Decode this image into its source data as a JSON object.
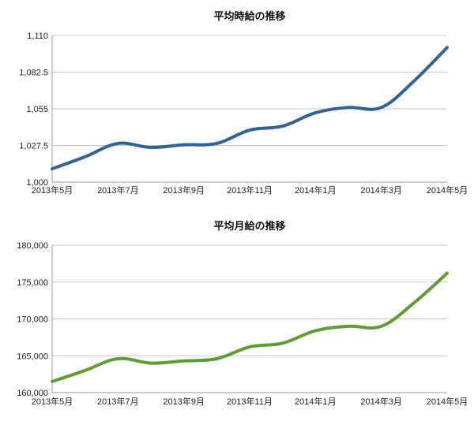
{
  "chart_data": [
    {
      "type": "line",
      "title": "平均時給の推移",
      "xlabel": "",
      "ylabel": "",
      "ylim": [
        1000,
        1110
      ],
      "yticks": [
        "1,000",
        "1,027.5",
        "1,055",
        "1,082.5",
        "1,110"
      ],
      "ytick_values": [
        1000,
        1027.5,
        1055,
        1082.5,
        1110
      ],
      "xtick_labels": [
        "2013年5月",
        "2013年7月",
        "2013年9月",
        "2013年11月",
        "2014年1月",
        "2014年3月",
        "2014年5月"
      ],
      "x": [
        "2013年5月",
        "2013年6月",
        "2013年7月",
        "2013年8月",
        "2013年9月",
        "2013年10月",
        "2013年11月",
        "2013年12月",
        "2014年1月",
        "2014年2月",
        "2014年3月",
        "2014年4月",
        "2014年5月"
      ],
      "series": [
        {
          "values": [
            1010,
            1019,
            1029,
            1026,
            1028,
            1029,
            1039,
            1042,
            1052,
            1056,
            1056,
            1076,
            1101
          ],
          "color": "#2d6395"
        }
      ],
      "grid": true
    },
    {
      "type": "line",
      "title": "平均月給の推移",
      "xlabel": "",
      "ylabel": "",
      "ylim": [
        160000,
        180000
      ],
      "yticks": [
        "160,000",
        "165,000",
        "170,000",
        "175,000",
        "180,000"
      ],
      "ytick_values": [
        160000,
        165000,
        170000,
        175000,
        180000
      ],
      "xtick_labels": [
        "2013年5月",
        "2013年7月",
        "2013年9月",
        "2013年11月",
        "2014年1月",
        "2014年3月",
        "2014年5月"
      ],
      "x": [
        "2013年5月",
        "2013年6月",
        "2013年7月",
        "2013年8月",
        "2013年9月",
        "2013年10月",
        "2013年11月",
        "2013年12月",
        "2014年1月",
        "2014年2月",
        "2014年3月",
        "2014年4月",
        "2014年5月"
      ],
      "series": [
        {
          "values": [
            161500,
            163000,
            164600,
            164000,
            164300,
            164600,
            166200,
            166700,
            168400,
            169000,
            169000,
            172200,
            176200
          ],
          "color": "#5d9e2e"
        }
      ],
      "grid": true
    }
  ]
}
